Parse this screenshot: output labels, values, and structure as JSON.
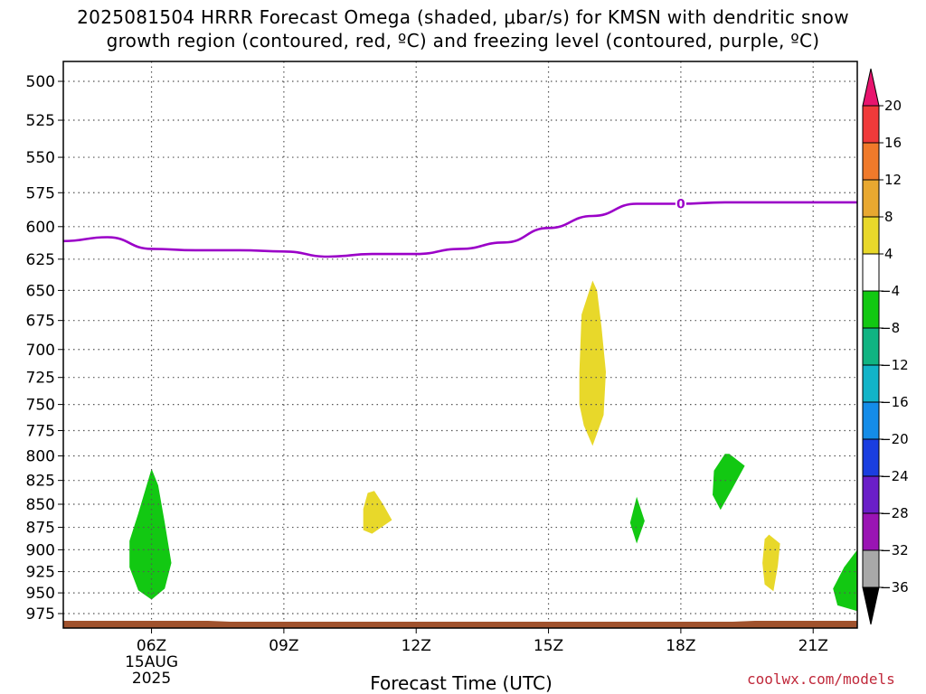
{
  "title": {
    "line1": "2025081504 HRRR Forecast Omega (shaded, μbar/s) for KMSN with dendritic snow",
    "line2": "growth region (contoured, red, ºC) and freezing level (contoured, purple, ºC)"
  },
  "credit": "coolwx.com/models",
  "colors": {
    "freezing_level": "#9b00c8",
    "ground": "#a0522d",
    "grid": "#555555"
  },
  "chart_data": {
    "type": "time-height contour",
    "xlabel": "Forecast Time (UTC)",
    "ylabel": "",
    "x_ticks": [
      {
        "hour": 6,
        "label": "06Z",
        "sub1": "15AUG",
        "sub2": "2025"
      },
      {
        "hour": 9,
        "label": "09Z"
      },
      {
        "hour": 12,
        "label": "12Z"
      },
      {
        "hour": 15,
        "label": "15Z"
      },
      {
        "hour": 18,
        "label": "18Z"
      },
      {
        "hour": 21,
        "label": "21Z"
      }
    ],
    "xlim": [
      4,
      22
    ],
    "y_ticks": [
      500,
      525,
      550,
      575,
      600,
      625,
      650,
      675,
      700,
      725,
      750,
      775,
      800,
      825,
      850,
      875,
      900,
      925,
      950,
      975
    ],
    "ylim": [
      485,
      990
    ],
    "y_scale": "log-pressure (inverted)",
    "freezing_level": {
      "label": "0",
      "label_hour": 18,
      "points": [
        [
          4,
          611
        ],
        [
          5,
          608
        ],
        [
          6,
          617
        ],
        [
          7,
          618
        ],
        [
          8,
          618
        ],
        [
          9,
          619
        ],
        [
          10,
          623
        ],
        [
          11,
          621
        ],
        [
          12,
          621
        ],
        [
          13,
          617
        ],
        [
          14,
          612
        ],
        [
          15,
          601
        ],
        [
          16,
          592
        ],
        [
          17,
          583
        ],
        [
          18,
          583
        ],
        [
          19,
          582
        ],
        [
          20,
          582
        ],
        [
          21,
          582
        ],
        [
          22,
          582
        ]
      ]
    },
    "omega_colorbar": {
      "levels": [
        20,
        16,
        12,
        8,
        4,
        -4,
        -8,
        -12,
        -16,
        -20,
        -24,
        -28,
        -32,
        -36
      ],
      "colors": [
        "#e8146e",
        "#f03a3a",
        "#f07a2a",
        "#e8a830",
        "#e8d82a",
        "#ffffff",
        "#12c812",
        "#10b482",
        "#12b4c8",
        "#148ce8",
        "#1a3ee0",
        "#6a1ec8",
        "#9a14b4",
        "#a8a8a8",
        "#000000"
      ]
    },
    "omega_regions": [
      {
        "name": "green-06z",
        "value_range": "-8 to -4",
        "color": "#12c812",
        "points": [
          [
            6.0,
            813
          ],
          [
            5.7,
            860
          ],
          [
            5.5,
            890
          ],
          [
            5.5,
            920
          ],
          [
            5.7,
            947
          ],
          [
            6.0,
            958
          ],
          [
            6.3,
            945
          ],
          [
            6.45,
            915
          ],
          [
            6.3,
            870
          ],
          [
            6.15,
            830
          ]
        ]
      },
      {
        "name": "yellow-11z",
        "value_range": "4 to 8",
        "color": "#e8d82a",
        "points": [
          [
            10.9,
            838
          ],
          [
            10.8,
            855
          ],
          [
            10.8,
            878
          ],
          [
            11.0,
            882
          ],
          [
            11.45,
            867
          ],
          [
            11.25,
            850
          ],
          [
            11.05,
            836
          ]
        ]
      },
      {
        "name": "yellow-16z",
        "value_range": "4 to 8",
        "color": "#e8d82a",
        "points": [
          [
            16.0,
            642
          ],
          [
            15.75,
            670
          ],
          [
            15.7,
            720
          ],
          [
            15.7,
            750
          ],
          [
            15.8,
            770
          ],
          [
            16.0,
            790
          ],
          [
            16.25,
            760
          ],
          [
            16.3,
            720
          ],
          [
            16.2,
            680
          ],
          [
            16.1,
            650
          ]
        ]
      },
      {
        "name": "green-17z",
        "value_range": "-8 to -4",
        "color": "#12c812",
        "points": [
          [
            17.0,
            842
          ],
          [
            16.85,
            870
          ],
          [
            17.0,
            893
          ],
          [
            17.18,
            868
          ]
        ]
      },
      {
        "name": "green-19z",
        "value_range": "-8 to -4",
        "color": "#12c812",
        "points": [
          [
            19.0,
            798
          ],
          [
            18.75,
            815
          ],
          [
            18.72,
            840
          ],
          [
            18.9,
            856
          ],
          [
            19.15,
            835
          ],
          [
            19.45,
            810
          ],
          [
            19.1,
            798
          ]
        ]
      },
      {
        "name": "yellow-20z",
        "value_range": "4 to 8",
        "color": "#e8d82a",
        "points": [
          [
            19.9,
            888
          ],
          [
            19.85,
            915
          ],
          [
            19.9,
            940
          ],
          [
            20.1,
            948
          ],
          [
            20.2,
            918
          ],
          [
            20.25,
            893
          ],
          [
            20.0,
            883
          ]
        ]
      },
      {
        "name": "green-22z",
        "value_range": "-8 to -4",
        "color": "#12c812",
        "points": [
          [
            22.0,
            900
          ],
          [
            21.7,
            920
          ],
          [
            21.45,
            945
          ],
          [
            21.55,
            965
          ],
          [
            22.0,
            972
          ]
        ]
      }
    ]
  }
}
